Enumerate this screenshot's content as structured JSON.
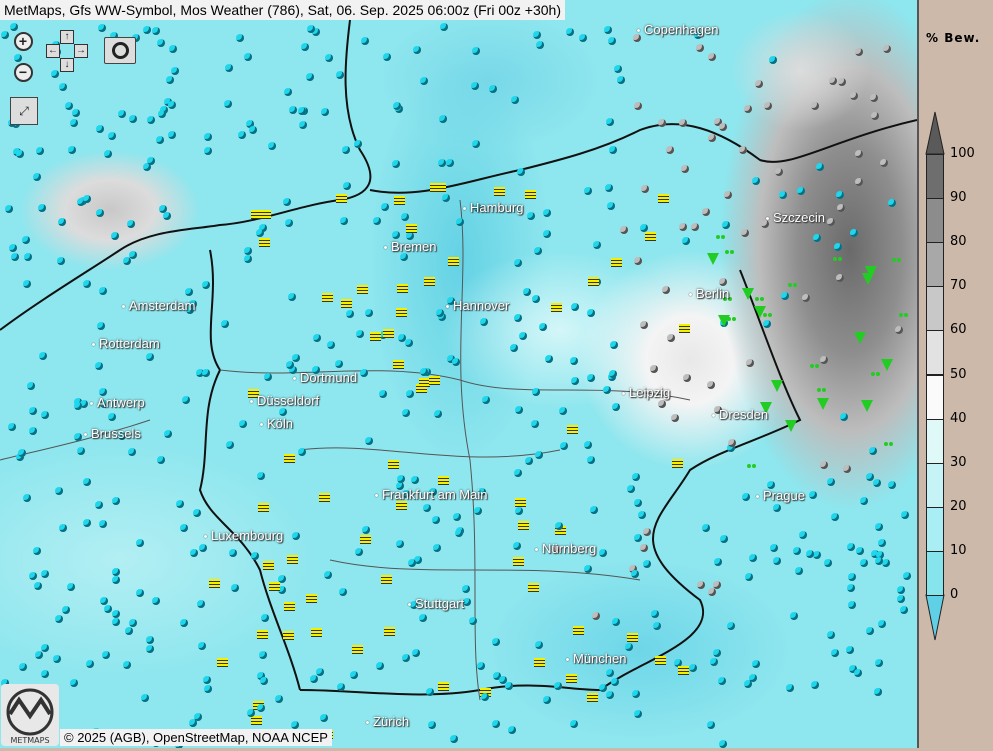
{
  "title": "MetMaps, Gfs WW-Symbol, Mos Weather (786), Sat, 06. Sep. 2025 06:00z (Fri 00z +30h)",
  "controls": {
    "zoom_in": "zoom-in",
    "zoom_out": "zoom-out",
    "pan_up": "↑",
    "pan_down": "↓",
    "pan_left": "←",
    "pan_right": "→",
    "screenshot": "camera",
    "fullscreen": "fullscreen"
  },
  "cities": [
    "Copenhagen",
    "Hamburg",
    "Bremen",
    "Szczecin",
    "Amsterdam",
    "Hannover",
    "Berlin",
    "Rotterdam",
    "Dortmund",
    "Leipzig",
    "Antwerp",
    "Düsseldorf",
    "Dresden",
    "Brussels",
    "Köln",
    "Frankfurt am Main",
    "Prague",
    "Luxembourg",
    "Nürnberg",
    "Stuttgart",
    "München",
    "Zürich"
  ],
  "legend": {
    "title": "% Bew.",
    "labels": [
      "100",
      "90",
      "80",
      "70",
      "60",
      "50",
      "40",
      "30",
      "20",
      "10",
      "0"
    ],
    "colors": {
      "above_100": "#5a5a5a",
      "90_100": "#6e6e6e",
      "80_90": "#8c8c8c",
      "70_80": "#a8a8a8",
      "60_70": "#c8c8c8",
      "50_60": "#e2e2e2",
      "40_50": "#fafafa",
      "30_40": "#dff8f8",
      "20_30": "#c6f4f6",
      "10_20": "#a8eef4",
      "0_10": "#86e4ec",
      "below_0": "#5fd0e6"
    }
  },
  "symbols": {
    "cloudy": "#1fd7ec",
    "fog": "#f5f000",
    "overcast": "#bdbdbd",
    "showers": "#22cc22"
  },
  "logo": "METMAPS",
  "copyright": "© 2025 (AGB), OpenStreetMap, NOAA NCEP"
}
